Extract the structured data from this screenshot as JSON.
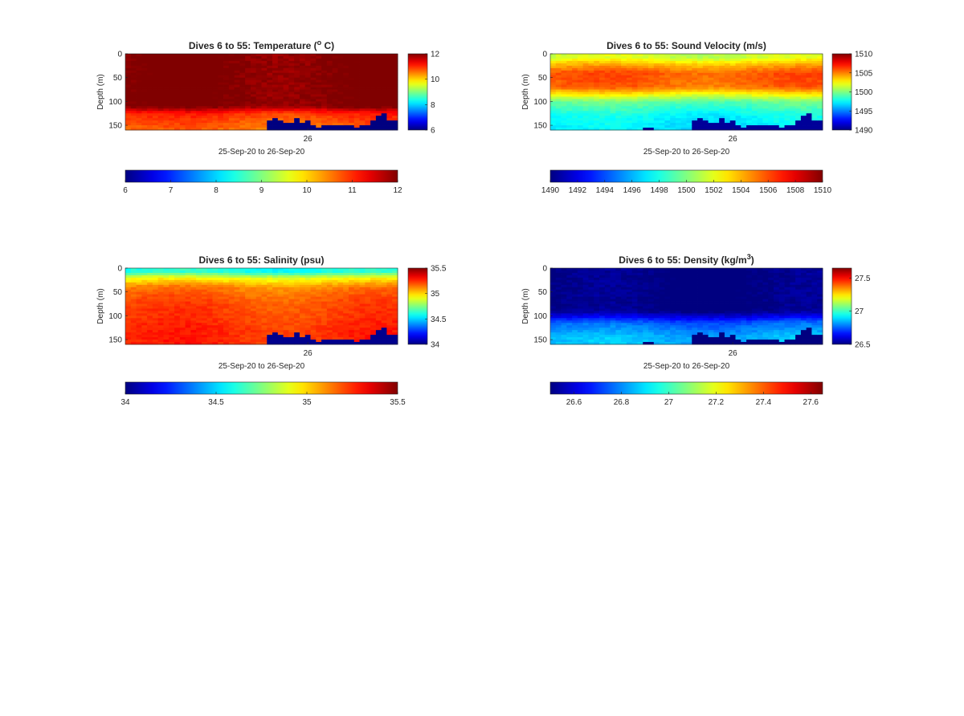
{
  "figure": {
    "background": "#ffffff",
    "colormap": "jet"
  },
  "chart_data": [
    {
      "type": "heatmap",
      "title_prefix": "Dives 6 to 55: Temperature (",
      "title_sup": "o",
      "title_suffix": " C)",
      "ylabel": "Depth (m)",
      "xlabel": "25-Sep-20 to 26-Sep-20",
      "x_ticks": [
        "26"
      ],
      "y_ticks": [
        "0",
        "50",
        "100",
        "150"
      ],
      "ylim": [
        0,
        160
      ],
      "y_reversed": true,
      "n_dives": 50,
      "clim": [
        6,
        12
      ],
      "colorbar_side_ticks": [
        "6",
        "8",
        "10",
        "12"
      ],
      "colorbar_bottom_ticks": [
        "6",
        "7",
        "8",
        "9",
        "10",
        "11",
        "12"
      ],
      "profile": {
        "depths": [
          0,
          5,
          110,
          125,
          140,
          160
        ],
        "values": [
          12,
          12,
          12,
          11.0,
          10.8,
          10.6
        ]
      },
      "bottom_fill": 6.0,
      "seafloor_depth": [
        158,
        160,
        160,
        160,
        160,
        160,
        160,
        160,
        160,
        160,
        160,
        160,
        160,
        160,
        160,
        160,
        160,
        160,
        160,
        160,
        160,
        160,
        160,
        160,
        160,
        160,
        140,
        135,
        140,
        145,
        144,
        135,
        145,
        140,
        150,
        155,
        150,
        152,
        150,
        148,
        150,
        152,
        155,
        150,
        148,
        140,
        132,
        125,
        140,
        142
      ]
    },
    {
      "type": "heatmap",
      "title_prefix": "Dives 6 to 55: Sound Velocity (m/s)",
      "title_sup": "",
      "title_suffix": "",
      "ylabel": "Depth (m)",
      "xlabel": "25-Sep-20 to 26-Sep-20",
      "x_ticks": [
        "26"
      ],
      "y_ticks": [
        "0",
        "50",
        "100",
        "150"
      ],
      "ylim": [
        0,
        160
      ],
      "y_reversed": true,
      "n_dives": 50,
      "clim": [
        1490,
        1510
      ],
      "colorbar_side_ticks": [
        "1490",
        "1495",
        "1500",
        "1505",
        "1510"
      ],
      "colorbar_bottom_ticks": [
        "1490",
        "1492",
        "1494",
        "1496",
        "1498",
        "1500",
        "1502",
        "1504",
        "1506",
        "1508",
        "1510"
      ],
      "profile": {
        "depths": [
          0,
          8,
          20,
          40,
          70,
          100,
          130,
          160
        ],
        "values": [
          1501.5,
          1501.5,
          1503.5,
          1505.8,
          1505.5,
          1499.5,
          1497.5,
          1497.0
        ]
      },
      "bottom_fill": 1490.5,
      "seafloor_depth": [
        158,
        160,
        160,
        160,
        160,
        160,
        160,
        160,
        160,
        160,
        160,
        160,
        160,
        160,
        160,
        160,
        160,
        155,
        155,
        160,
        160,
        160,
        160,
        160,
        160,
        160,
        140,
        135,
        140,
        145,
        144,
        135,
        145,
        140,
        150,
        155,
        150,
        152,
        150,
        148,
        150,
        152,
        155,
        150,
        148,
        140,
        132,
        125,
        140,
        142
      ]
    },
    {
      "type": "heatmap",
      "title_prefix": "Dives 6 to 55: Salinity (psu)",
      "title_sup": "",
      "title_suffix": "",
      "ylabel": "Depth (m)",
      "xlabel": "25-Sep-20 to 26-Sep-20",
      "x_ticks": [
        "26"
      ],
      "y_ticks": [
        "0",
        "50",
        "100",
        "150"
      ],
      "ylim": [
        0,
        160
      ],
      "y_reversed": true,
      "n_dives": 50,
      "clim": [
        34,
        35.5
      ],
      "colorbar_side_ticks": [
        "34",
        "34.5",
        "35",
        "35.5"
      ],
      "colorbar_bottom_ticks": [
        "34",
        "34.5",
        "35",
        "35.5"
      ],
      "profile": {
        "depths": [
          0,
          8,
          20,
          40,
          70,
          100,
          130,
          160
        ],
        "values": [
          34.6,
          34.6,
          34.9,
          35.12,
          35.2,
          35.22,
          35.25,
          35.25
        ]
      },
      "bottom_fill": 34.02,
      "seafloor_depth": [
        158,
        160,
        160,
        160,
        160,
        160,
        160,
        160,
        160,
        160,
        160,
        160,
        160,
        160,
        160,
        160,
        160,
        160,
        160,
        160,
        160,
        160,
        160,
        160,
        160,
        160,
        140,
        135,
        140,
        145,
        144,
        135,
        145,
        140,
        150,
        155,
        150,
        152,
        150,
        148,
        150,
        152,
        155,
        150,
        148,
        140,
        132,
        125,
        140,
        142
      ]
    },
    {
      "type": "heatmap",
      "title_prefix": "Dives 6 to 55: Density (kg/m",
      "title_sup": "3",
      "title_suffix": ")",
      "ylabel": "Depth (m)",
      "xlabel": "25-Sep-20 to 26-Sep-20",
      "x_ticks": [
        "26"
      ],
      "y_ticks": [
        "0",
        "50",
        "100",
        "150"
      ],
      "ylim": [
        0,
        160
      ],
      "y_reversed": true,
      "n_dives": 50,
      "clim": [
        26.5,
        27.65
      ],
      "colorbar_side_ticks": [
        "26.5",
        "27",
        "27.5"
      ],
      "colorbar_bottom_ticks": [
        "26.6",
        "26.8",
        "27",
        "27.2",
        "27.4",
        "27.6"
      ],
      "profile": {
        "depths": [
          0,
          90,
          100,
          115,
          130,
          145,
          160
        ],
        "values": [
          26.5,
          26.5,
          26.6,
          26.75,
          26.8,
          26.85,
          26.85
        ]
      },
      "bottom_fill": 26.5,
      "seafloor_depth": [
        158,
        160,
        160,
        160,
        160,
        160,
        160,
        160,
        160,
        160,
        160,
        160,
        160,
        160,
        160,
        160,
        160,
        155,
        155,
        160,
        160,
        160,
        160,
        160,
        160,
        160,
        140,
        135,
        140,
        145,
        144,
        135,
        145,
        140,
        150,
        155,
        150,
        152,
        150,
        148,
        150,
        152,
        155,
        150,
        148,
        140,
        132,
        125,
        140,
        142
      ]
    }
  ]
}
